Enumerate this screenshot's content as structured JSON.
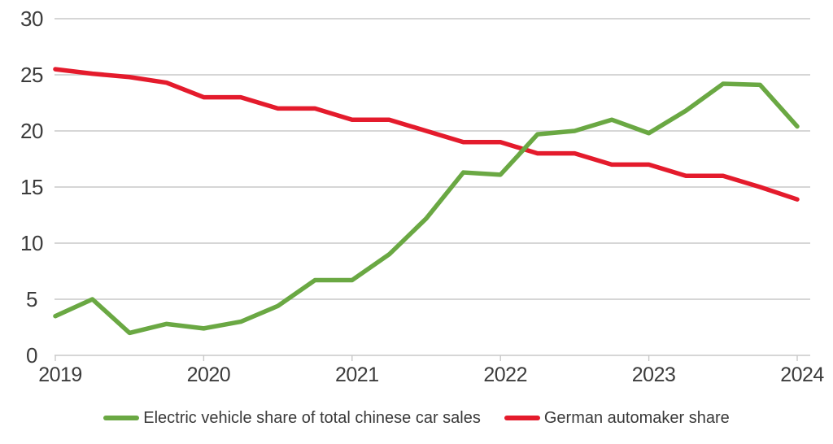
{
  "chart_data": {
    "type": "line",
    "x_unit": "quarterly",
    "points_per_year": 4,
    "x_tick_labels": [
      "2019",
      "2020",
      "2021",
      "2022",
      "2023",
      "2024"
    ],
    "y_ticks": [
      0,
      5,
      10,
      15,
      20,
      25,
      30
    ],
    "y_tick_labels": [
      "0",
      "5",
      "10",
      "15",
      "20",
      "25",
      "30"
    ],
    "ylim": [
      0,
      30
    ],
    "grid": "horizontal",
    "legend_position": "bottom-center",
    "colors": {
      "grid": "#c9c9c9",
      "axis_text": "#3c3c3c",
      "background": "#ffffff"
    },
    "series": [
      {
        "id": "ev-share-line",
        "name": "Electric vehicle share of total chinese car sales",
        "color": "#6aa843",
        "values": [
          3.5,
          5.0,
          2.0,
          2.8,
          2.4,
          3.0,
          4.4,
          6.7,
          6.7,
          9.0,
          12.2,
          16.3,
          16.1,
          19.7,
          20.0,
          21.0,
          19.8,
          21.8,
          24.2,
          24.1,
          20.4
        ]
      },
      {
        "id": "german-share-line",
        "name": "German automaker share",
        "color": "#e41b2c",
        "values": [
          25.5,
          25.1,
          24.8,
          24.3,
          23.0,
          23.0,
          22.0,
          22.0,
          21.0,
          21.0,
          20.0,
          19.0,
          19.0,
          18.0,
          18.0,
          17.0,
          17.0,
          16.0,
          16.0,
          15.0,
          13.9
        ]
      }
    ]
  },
  "legend": {
    "items": [
      {
        "label": "Electric vehicle share of total chinese car sales",
        "color": "#6aa843"
      },
      {
        "label": "German automaker share",
        "color": "#e41b2c"
      }
    ]
  }
}
